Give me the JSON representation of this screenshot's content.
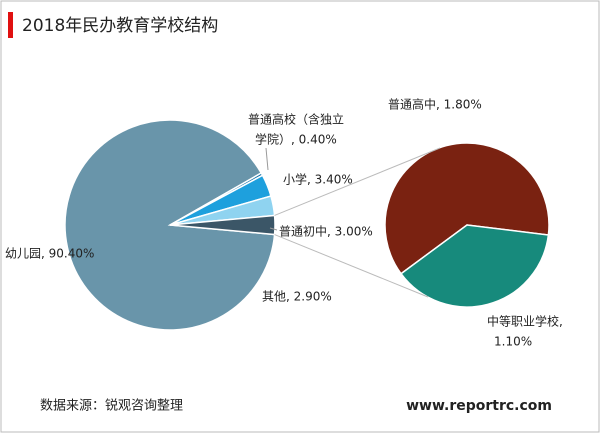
{
  "chart_data": {
    "type": "pie-of-pie",
    "title": "2018年民办教育学校结构",
    "values": [
      90.4,
      0.4,
      3.4,
      3.0,
      2.9
    ],
    "value_labels": [
      "幼儿园, 90.40%",
      [
        "普通高校（含独立",
        "学院）, 0.40%"
      ],
      "小学, 3.40%",
      "普通初中, 3.00%",
      "其他, 2.90%"
    ],
    "colors": [
      "#6995aa",
      "#0f6fa8",
      "#1ea0dd",
      "#8fd3f0",
      "#3b5667"
    ],
    "secondary": {
      "values": [
        1.8,
        1.1
      ],
      "value_labels": [
        "普通高中, 1.80%",
        [
          "中等职业学校,",
          "1.10%"
        ]
      ],
      "colors": [
        "#7a2211",
        "#178a7c"
      ]
    }
  },
  "footer": {
    "source": "数据来源：锐观咨询整理",
    "website": "www.reportrc.com"
  }
}
